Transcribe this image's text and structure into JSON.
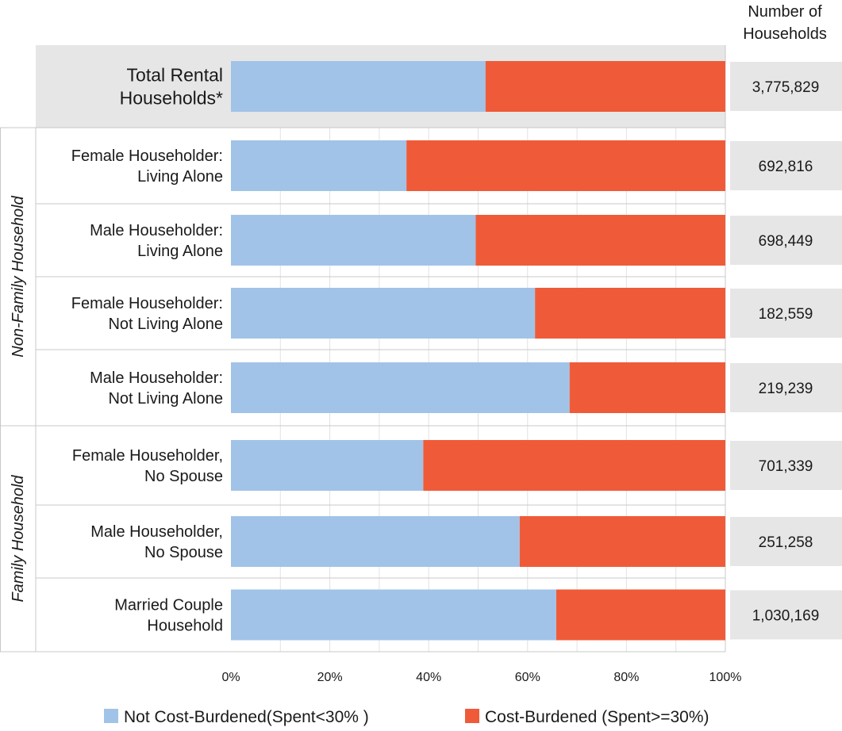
{
  "chart_data": {
    "type": "bar",
    "orientation": "horizontal",
    "stacked": true,
    "value_header": [
      "Number of",
      "Households"
    ],
    "categories": [
      {
        "label": [
          "Total Rental",
          "Households*"
        ],
        "group": "",
        "count": "3,775,829",
        "highlight": true
      },
      {
        "label": [
          "Female Householder:",
          "Living Alone"
        ],
        "group": "Non-Family Household",
        "count": "692,816"
      },
      {
        "label": [
          "Male Householder:",
          "Living Alone"
        ],
        "group": "Non-Family Household",
        "count": "698,449"
      },
      {
        "label": [
          "Female Householder:",
          "Not Living Alone"
        ],
        "group": "Non-Family Household",
        "count": "182,559"
      },
      {
        "label": [
          "Male Householder:",
          "Not Living Alone"
        ],
        "group": "Non-Family Household",
        "count": "219,239"
      },
      {
        "label": [
          "Female Householder,",
          "No Spouse"
        ],
        "group": "Family Household",
        "count": "701,339"
      },
      {
        "label": [
          "Male Householder,",
          "No Spouse"
        ],
        "group": "Family Household",
        "count": "251,258"
      },
      {
        "label": [
          "Married Couple",
          "Household"
        ],
        "group": "Family Household",
        "count": "1,030,169"
      }
    ],
    "groups": [
      "Non-Family Household",
      "Family Household"
    ],
    "series": [
      {
        "name": "Not Cost-Burdened(Spent<30% )",
        "color": "#a2c3e8",
        "values": [
          51.5,
          35.5,
          49.5,
          61.5,
          68.5,
          38.9,
          58.4,
          65.8
        ]
      },
      {
        "name": "Cost-Burdened (Spent>=30%)",
        "color": "#ef5b39",
        "values": [
          48.5,
          64.5,
          50.5,
          38.5,
          31.5,
          61.1,
          41.6,
          34.2
        ]
      }
    ],
    "x_axis": {
      "min": 0,
      "max": 100,
      "ticks": [
        "0%",
        "20%",
        "40%",
        "60%",
        "80%",
        "100%"
      ]
    },
    "grid": true,
    "legend_position": "bottom"
  }
}
